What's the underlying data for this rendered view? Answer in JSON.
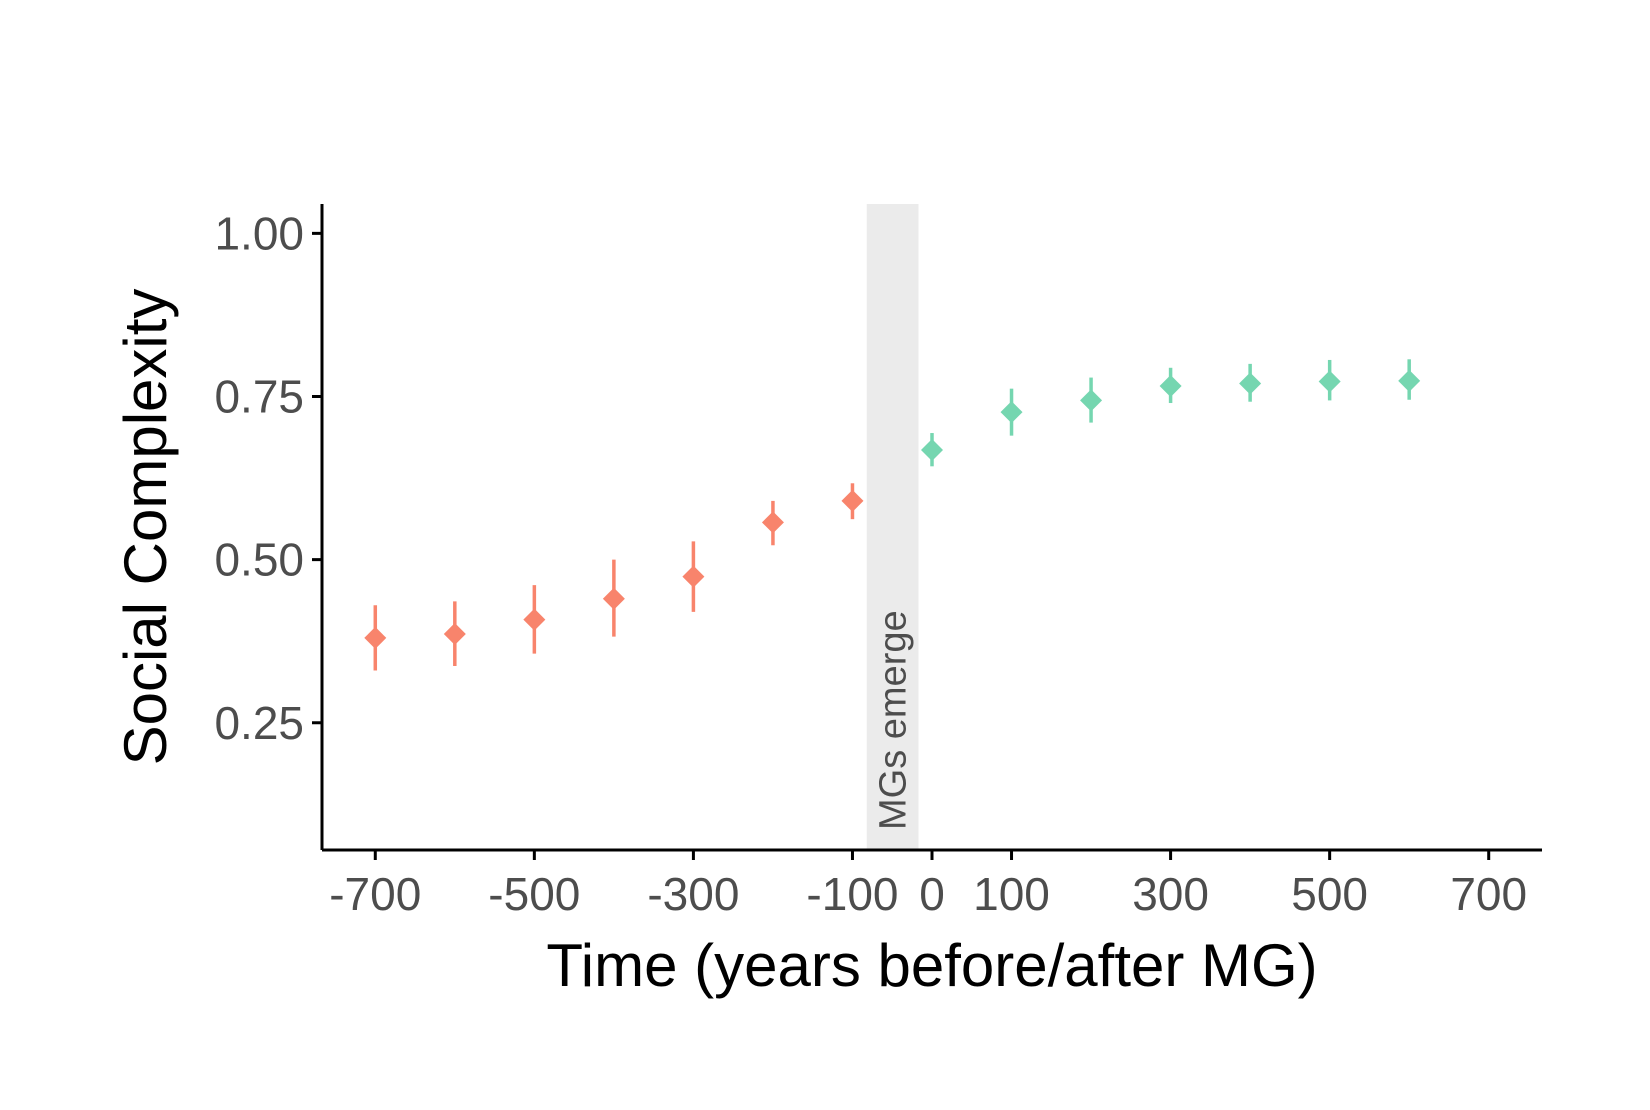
{
  "chart_data": {
    "type": "scatter",
    "title": "",
    "xlabel": "Time (years before/after MG)",
    "ylabel": "Social Complexity",
    "xlim": [
      -767,
      767
    ],
    "ylim": [
      0.055,
      1.045
    ],
    "xticks": [
      -700,
      -500,
      -300,
      -100,
      0,
      100,
      300,
      500,
      700
    ],
    "xtick_labels": [
      "-700",
      "-500",
      "-300",
      "-100",
      "0",
      "100",
      "300",
      "500",
      "700"
    ],
    "yticks": [
      0.25,
      0.5,
      0.75,
      1.0
    ],
    "ytick_labels": [
      "0.25",
      "0.50",
      "0.75",
      "1.00"
    ],
    "grid": false,
    "legend": "none",
    "band": {
      "x_start": -82,
      "x_end": -17,
      "label": "MGs emerge",
      "color": "#ebebeb"
    },
    "series": [
      {
        "color": "#f8846c",
        "marker": "diamond",
        "x": [
          -700,
          -600,
          -500,
          -400,
          -300,
          -200,
          -100
        ],
        "y": [
          0.38,
          0.386,
          0.408,
          0.44,
          0.474,
          0.557,
          0.59
        ],
        "y_low": [
          0.33,
          0.337,
          0.356,
          0.382,
          0.42,
          0.522,
          0.562
        ],
        "y_high": [
          0.43,
          0.436,
          0.461,
          0.5,
          0.528,
          0.59,
          0.617
        ]
      },
      {
        "color": "#75d6b0",
        "marker": "diamond",
        "x": [
          0,
          100,
          200,
          300,
          400,
          500,
          600
        ],
        "y": [
          0.668,
          0.726,
          0.744,
          0.766,
          0.77,
          0.773,
          0.774
        ],
        "y_low": [
          0.643,
          0.69,
          0.71,
          0.74,
          0.742,
          0.744,
          0.745
        ],
        "y_high": [
          0.694,
          0.762,
          0.779,
          0.794,
          0.8,
          0.806,
          0.807
        ]
      }
    ]
  }
}
